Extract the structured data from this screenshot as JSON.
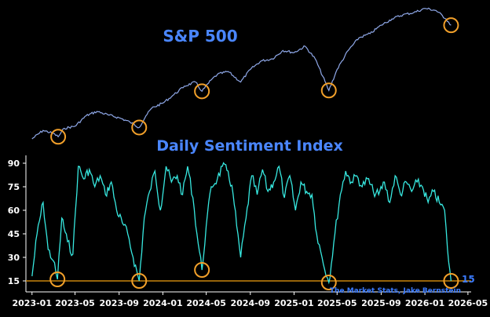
{
  "chart_data": [
    {
      "type": "line",
      "title": "S&P 500",
      "color": "#8fa8e8",
      "x": [
        "2023-01-01",
        "2023-02-01",
        "2023-03-01",
        "2023-03-15",
        "2023-04-01",
        "2023-05-01",
        "2023-06-01",
        "2023-07-01",
        "2023-08-01",
        "2023-09-01",
        "2023-10-01",
        "2023-10-27",
        "2023-11-15",
        "2023-12-01",
        "2024-01-01",
        "2024-02-01",
        "2024-03-01",
        "2024-04-01",
        "2024-04-19",
        "2024-05-15",
        "2024-06-01",
        "2024-07-01",
        "2024-08-05",
        "2024-09-01",
        "2024-10-01",
        "2024-11-01",
        "2024-12-01",
        "2025-01-01",
        "2025-02-01",
        "2025-03-01",
        "2025-04-08",
        "2025-05-01",
        "2025-06-01",
        "2025-07-01",
        "2025-08-01",
        "2025-09-01",
        "2025-10-01",
        "2025-11-01",
        "2025-12-01",
        "2026-01-01",
        "2026-02-01",
        "2026-03-01",
        "2026-03-15"
      ],
      "values": [
        3850,
        4050,
        3980,
        3900,
        4100,
        4150,
        4400,
        4500,
        4420,
        4350,
        4250,
        4120,
        4400,
        4580,
        4700,
        4900,
        5100,
        5200,
        4980,
        5250,
        5380,
        5450,
        5200,
        5500,
        5700,
        5750,
        5950,
        5900,
        6050,
        5750,
        5000,
        5500,
        5950,
        6250,
        6350,
        6550,
        6700,
        6800,
        6850,
        6950,
        6900,
        6700,
        6550
      ],
      "annotations": [
        "2023-03-15",
        "2023-10-27",
        "2024-04-19",
        "2025-04-08",
        "2026-03-15"
      ]
    },
    {
      "type": "line",
      "title": "Daily Sentiment Index",
      "color": "#37e8e0",
      "x": [
        "2023-01-01",
        "2023-01-15",
        "2023-02-01",
        "2023-02-15",
        "2023-03-01",
        "2023-03-13",
        "2023-03-25",
        "2023-04-10",
        "2023-04-25",
        "2023-05-10",
        "2023-05-25",
        "2023-06-10",
        "2023-06-25",
        "2023-07-10",
        "2023-07-25",
        "2023-08-10",
        "2023-08-25",
        "2023-09-10",
        "2023-09-25",
        "2023-10-10",
        "2023-10-27",
        "2023-11-10",
        "2023-11-25",
        "2023-12-10",
        "2023-12-25",
        "2024-01-10",
        "2024-01-25",
        "2024-02-10",
        "2024-02-25",
        "2024-03-10",
        "2024-03-25",
        "2024-04-05",
        "2024-04-19",
        "2024-05-01",
        "2024-05-15",
        "2024-06-01",
        "2024-06-15",
        "2024-07-01",
        "2024-07-15",
        "2024-07-25",
        "2024-08-05",
        "2024-08-20",
        "2024-09-05",
        "2024-09-20",
        "2024-10-05",
        "2024-10-20",
        "2024-11-05",
        "2024-11-20",
        "2024-12-05",
        "2024-12-20",
        "2025-01-05",
        "2025-01-20",
        "2025-02-05",
        "2025-02-20",
        "2025-03-05",
        "2025-03-20",
        "2025-04-08",
        "2025-04-25",
        "2025-05-10",
        "2025-05-25",
        "2025-06-10",
        "2025-06-25",
        "2025-07-10",
        "2025-07-25",
        "2025-08-10",
        "2025-08-25",
        "2025-09-10",
        "2025-09-25",
        "2025-10-10",
        "2025-10-25",
        "2025-11-10",
        "2025-11-25",
        "2025-12-10",
        "2025-12-25",
        "2026-01-10",
        "2026-01-25",
        "2026-02-10",
        "2026-02-25",
        "2026-03-05",
        "2026-03-15"
      ],
      "values": [
        18,
        45,
        65,
        35,
        28,
        16,
        55,
        40,
        32,
        88,
        80,
        86,
        75,
        82,
        70,
        78,
        60,
        52,
        45,
        30,
        15,
        55,
        72,
        85,
        60,
        88,
        78,
        82,
        70,
        88,
        68,
        45,
        22,
        50,
        75,
        80,
        88,
        85,
        70,
        50,
        30,
        55,
        82,
        70,
        86,
        72,
        78,
        88,
        68,
        82,
        60,
        78,
        72,
        70,
        45,
        30,
        14,
        45,
        70,
        85,
        78,
        82,
        75,
        80,
        72,
        70,
        78,
        65,
        82,
        70,
        78,
        72,
        78,
        75,
        65,
        72,
        65,
        60,
        35,
        15
      ],
      "yticks": [
        15,
        30,
        45,
        60,
        75,
        90
      ],
      "xticks": [
        "2023-01",
        "2023-05",
        "2023-09",
        "2024-01",
        "2024-05",
        "2024-09",
        "2025-01",
        "2025-05",
        "2025-09",
        "2026-01",
        "2026-05"
      ],
      "reference_line": 15,
      "reference_color": "#c8860d",
      "end_label": "15",
      "annotations": [
        "2023-03-13",
        "2023-10-27",
        "2024-04-19",
        "2025-04-08",
        "2026-03-15"
      ]
    }
  ],
  "credit": "The Market Stats, Jake Bernstein",
  "marker_color": "#f2a02a"
}
